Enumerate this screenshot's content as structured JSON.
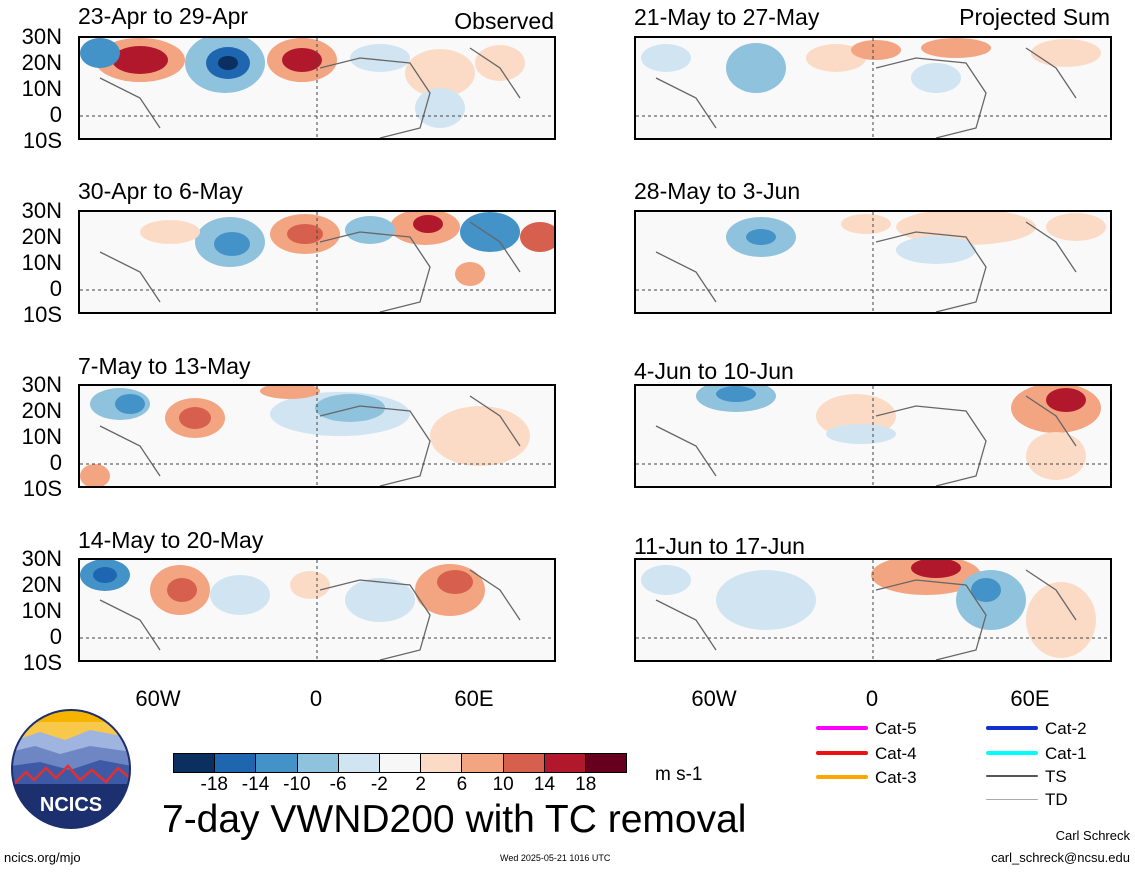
{
  "headers": {
    "left": "Observed",
    "right": "Projected Sum"
  },
  "panels": {
    "left": [
      {
        "title": "23-Apr to 29-Apr"
      },
      {
        "title": "30-Apr to 6-May"
      },
      {
        "title": "7-May to 13-May"
      },
      {
        "title": "14-May to 20-May"
      }
    ],
    "right": [
      {
        "title": "21-May to 27-May"
      },
      {
        "title": "28-May to 3-Jun"
      },
      {
        "title": "4-Jun to 10-Jun"
      },
      {
        "title": "11-Jun to 17-Jun"
      }
    ]
  },
  "lat_labels": [
    "30N",
    "20N",
    "10N",
    "0",
    "10S"
  ],
  "lon_labels": [
    "60W",
    "0",
    "60E"
  ],
  "colorbar": {
    "ticks": [
      "-18",
      "-14",
      "-10",
      "-6",
      "-2",
      "2",
      "6",
      "10",
      "14",
      "18"
    ],
    "colors": [
      "#0b2f5e",
      "#1f66b0",
      "#4392c8",
      "#8fc2dd",
      "#d0e5f1",
      "#f7f7f7",
      "#fcdbc6",
      "#f3a582",
      "#d6604d",
      "#b2182b",
      "#67001f"
    ],
    "units": "m s-1"
  },
  "main_title": "7-day VWND200 with TC removal",
  "logo_text": "NCICS",
  "legend": {
    "items": [
      {
        "label": "Cat-5",
        "color": "#ff00ff"
      },
      {
        "label": "Cat-4",
        "color": "#ee1111"
      },
      {
        "label": "Cat-3",
        "color": "#ffa500"
      },
      {
        "label": "Cat-2",
        "color": "#1030d0"
      },
      {
        "label": "Cat-1",
        "color": "#00ffff"
      },
      {
        "label": "TS",
        "color": "#555555"
      },
      {
        "label": "TD",
        "color": "#aaaaaa"
      }
    ]
  },
  "footer": {
    "url": "ncics.org/mjo",
    "timestamp": "Wed 2025-05-21 1016 UTC",
    "author": "Carl Schreck",
    "email": "carl_schreck@ncsu.edu"
  }
}
